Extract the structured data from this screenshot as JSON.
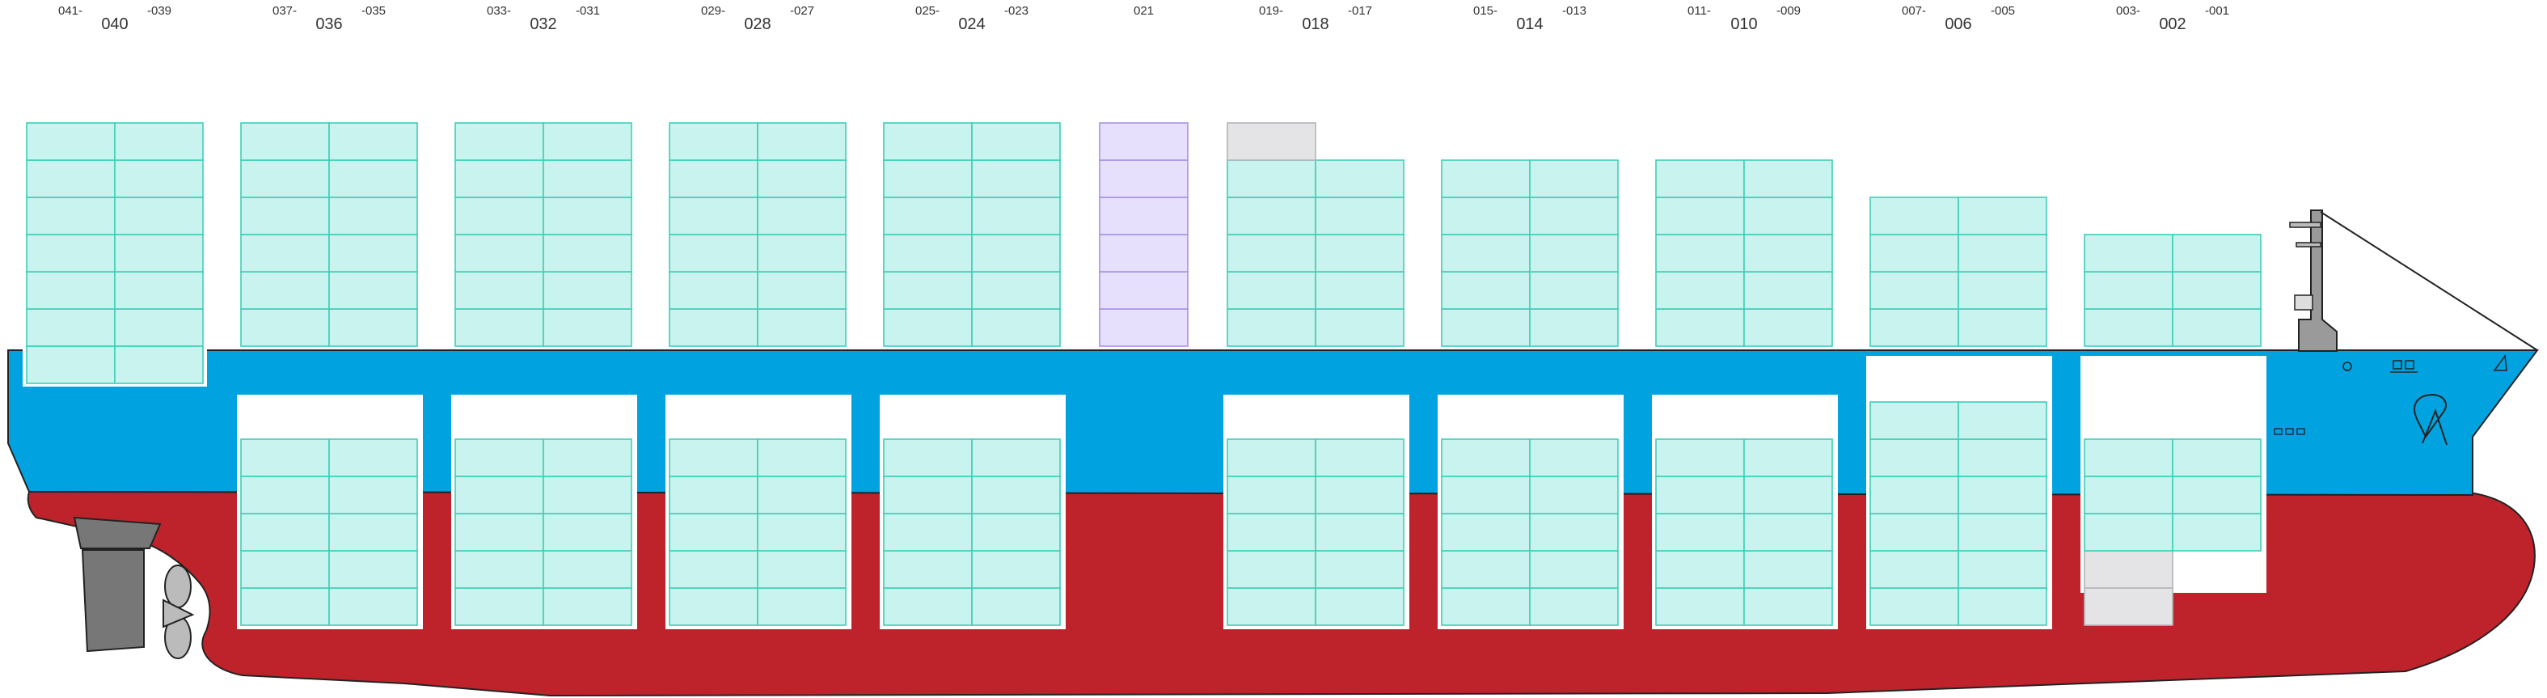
{
  "bays": [
    {
      "label": "040",
      "left": "041",
      "right": "039",
      "deck": {
        "cols": 2,
        "tiers": [
          {
            "n": 7,
            "status": "loaded"
          }
        ]
      },
      "hold": null
    },
    {
      "label": "036",
      "left": "037",
      "right": "035",
      "deck": {
        "cols": 2,
        "tiers": [
          {
            "n": 6,
            "status": "loaded"
          }
        ]
      },
      "hold": {
        "cols": 2,
        "tiers": [
          {
            "n": 5,
            "status": "loaded"
          }
        ]
      }
    },
    {
      "label": "032",
      "left": "033",
      "right": "031",
      "deck": {
        "cols": 2,
        "tiers": [
          {
            "n": 6,
            "status": "loaded"
          }
        ]
      },
      "hold": {
        "cols": 2,
        "tiers": [
          {
            "n": 5,
            "status": "loaded"
          }
        ]
      }
    },
    {
      "label": "028",
      "left": "029",
      "right": "027",
      "deck": {
        "cols": 2,
        "tiers": [
          {
            "n": 6,
            "status": "loaded"
          }
        ]
      },
      "hold": {
        "cols": 2,
        "tiers": [
          {
            "n": 5,
            "status": "loaded"
          }
        ]
      }
    },
    {
      "label": "024",
      "left": "025",
      "right": "023",
      "deck": {
        "cols": 2,
        "tiers": [
          {
            "n": 6,
            "status": "loaded"
          }
        ]
      },
      "hold": {
        "cols": 2,
        "tiers": [
          {
            "n": 5,
            "status": "loaded"
          }
        ]
      }
    },
    {
      "label": "",
      "left": "",
      "right": "021",
      "single": true,
      "deck": {
        "cols": 1,
        "tiers": [
          {
            "n": 6,
            "status": "reserved"
          }
        ]
      },
      "hold": null
    },
    {
      "label": "018",
      "left": "019",
      "right": "017",
      "deck": {
        "cols": 2,
        "tiers": [
          {
            "n": 5,
            "status": "loaded"
          },
          {
            "n": 1,
            "status": "empty",
            "cols": 1
          }
        ]
      },
      "hold": {
        "cols": 2,
        "tiers": [
          {
            "n": 5,
            "status": "loaded"
          }
        ]
      }
    },
    {
      "label": "014",
      "left": "015",
      "right": "013",
      "deck": {
        "cols": 2,
        "tiers": [
          {
            "n": 5,
            "status": "loaded"
          }
        ]
      },
      "hold": {
        "cols": 2,
        "tiers": [
          {
            "n": 5,
            "status": "loaded"
          }
        ]
      }
    },
    {
      "label": "010",
      "left": "011",
      "right": "009",
      "deck": {
        "cols": 2,
        "tiers": [
          {
            "n": 5,
            "status": "loaded"
          }
        ]
      },
      "hold": {
        "cols": 2,
        "tiers": [
          {
            "n": 5,
            "status": "loaded"
          }
        ]
      }
    },
    {
      "label": "006",
      "left": "007",
      "right": "005",
      "deck": {
        "cols": 2,
        "tiers": [
          {
            "n": 4,
            "status": "loaded"
          }
        ]
      },
      "hold": {
        "cols": 2,
        "tiers": [
          {
            "n": 6,
            "status": "loaded"
          }
        ]
      }
    },
    {
      "label": "002",
      "left": "003",
      "right": "001",
      "deck": {
        "cols": 2,
        "tiers": [
          {
            "n": 3,
            "status": "loaded"
          }
        ]
      },
      "hold": {
        "cols": 2,
        "tiers": [
          {
            "n": 2,
            "status": "empty",
            "cols": 1
          },
          {
            "n": 3,
            "status": "loaded"
          }
        ]
      }
    }
  ],
  "colors": {
    "hull_upper": "#00a3e0",
    "hull_lower": "#be232b",
    "loaded_fill": "#c8f3ee",
    "loaded_stroke": "#3ecfb6",
    "empty_fill": "#e4e4e6",
    "empty_stroke": "#b4b4b8",
    "reserved_fill": "#e6e0fc",
    "reserved_stroke": "#a892e6"
  }
}
